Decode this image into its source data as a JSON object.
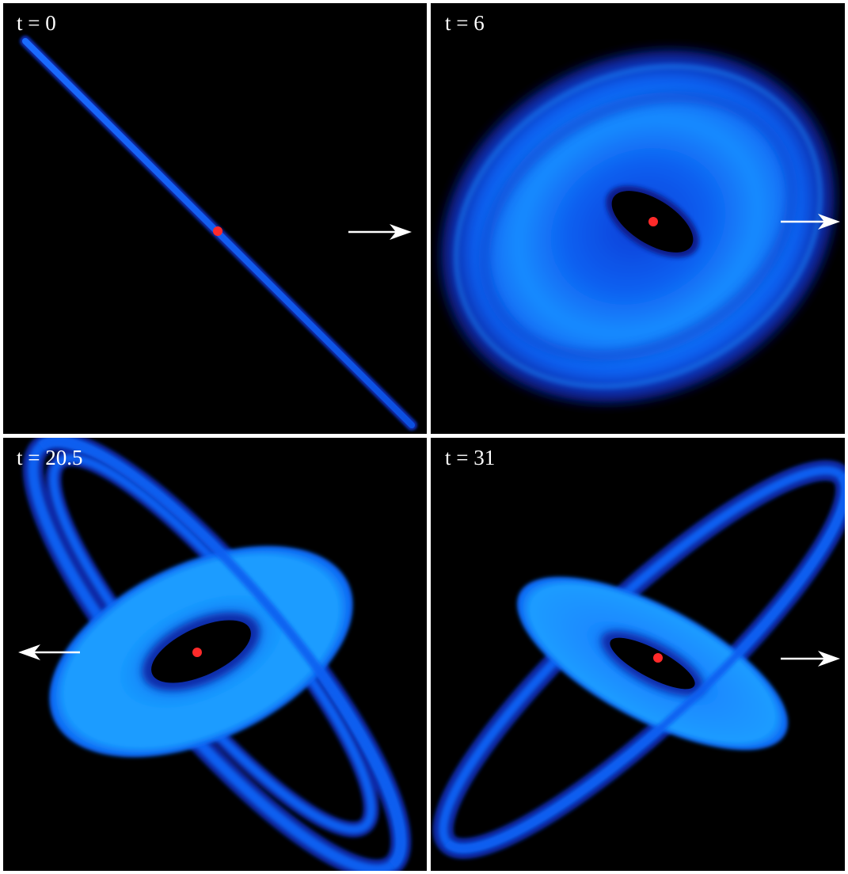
{
  "panels": [
    {
      "time_label": "t = 0",
      "arrow_direction": "right"
    },
    {
      "time_label": "t = 6",
      "arrow_direction": "right"
    },
    {
      "time_label": "t = 20.5",
      "arrow_direction": "left"
    },
    {
      "time_label": "t = 31",
      "arrow_direction": "right"
    }
  ],
  "colors": {
    "background": "#000000",
    "disk_dark": "#0a1a8c",
    "disk_mid": "#0a5cf0",
    "disk_bright": "#1a9cff",
    "center_marker": "#ff2a2a",
    "arrow": "#ffffff",
    "separator": "#ffffff"
  }
}
